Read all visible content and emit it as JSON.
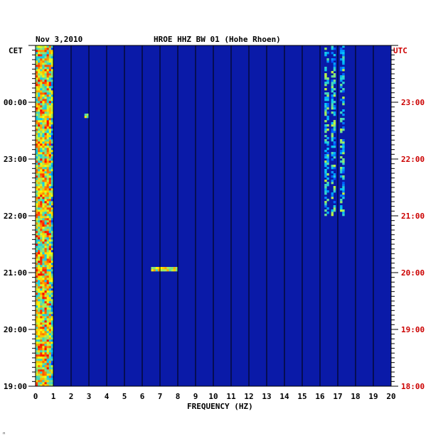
{
  "chart_data": {
    "type": "heatmap",
    "date": "Nov 3,2010",
    "title": "HROE HHZ BW 01 (Hohe Rhoen)",
    "left_axis_label": "CET",
    "right_axis_label": "UTC",
    "xlabel": "FREQUENCY (HZ)",
    "xlim": [
      0,
      20
    ],
    "x_ticks": [
      "0",
      "1",
      "2",
      "3",
      "4",
      "5",
      "6",
      "7",
      "8",
      "9",
      "10",
      "11",
      "12",
      "13",
      "14",
      "15",
      "16",
      "17",
      "18",
      "19",
      "20"
    ],
    "left_ticks": [
      "19:00",
      "20:00",
      "21:00",
      "22:00",
      "23:00",
      "00:00"
    ],
    "right_ticks": [
      "18:00",
      "19:00",
      "20:00",
      "21:00",
      "22:00",
      "23:00"
    ],
    "time_range_hours_utc": [
      18.0,
      24.0
    ],
    "colormap": [
      "#00008b",
      "#0000ff",
      "#00c8ff",
      "#ffff00",
      "#ff0000"
    ],
    "background_color": "#0a1aa8",
    "right_axis_color": "#cc0000",
    "features": [
      {
        "kind": "low_frequency_band",
        "freq_range_hz": [
          0.0,
          1.0
        ],
        "intensity": "high"
      },
      {
        "kind": "spectral_lines",
        "freq_hz": [
          16.3,
          16.7,
          17.2
        ],
        "utc_from": "21:00",
        "utc_to": "24:00",
        "intensity": "medium-high"
      },
      {
        "kind": "transient",
        "freq_range_hz": [
          6.4,
          7.9
        ],
        "utc": "20:03",
        "intensity": "high"
      },
      {
        "kind": "transient",
        "freq_range_hz": [
          2.7,
          2.9
        ],
        "utc": "22:45",
        "intensity": "medium"
      }
    ]
  },
  "footer_mark": "ᵸ"
}
